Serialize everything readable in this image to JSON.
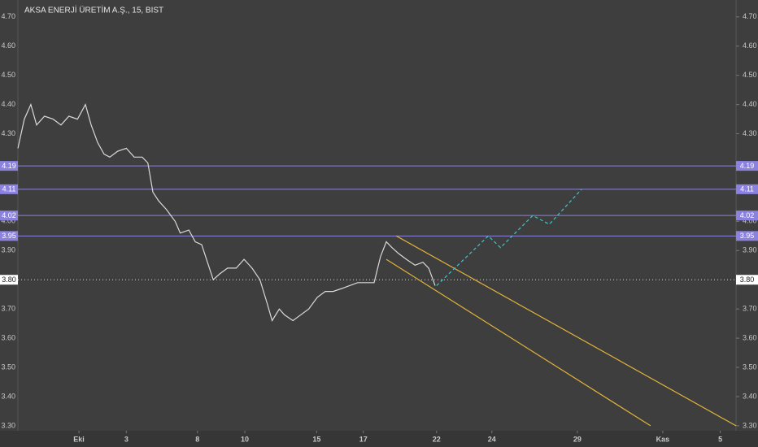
{
  "chart_data": {
    "type": "line",
    "title": "AKSA ENERJİ ÜRETİM A.Ş., 15, BIST",
    "xlim": [
      0,
      100
    ],
    "xticks": [
      {
        "value": 8.5,
        "label": "Eki"
      },
      {
        "value": 15.1,
        "label": "3"
      },
      {
        "value": 25.0,
        "label": "8"
      },
      {
        "value": 31.6,
        "label": "10"
      },
      {
        "value": 41.6,
        "label": "15"
      },
      {
        "value": 48.1,
        "label": "17"
      },
      {
        "value": 58.3,
        "label": "22"
      },
      {
        "value": 66.0,
        "label": "24"
      },
      {
        "value": 77.9,
        "label": "29"
      },
      {
        "value": 89.8,
        "label": "Kas"
      },
      {
        "value": 97.8,
        "label": "5"
      }
    ],
    "ylim": [
      3.283,
      4.758
    ],
    "yticks": [
      {
        "value": 3.3,
        "label": "3.30"
      },
      {
        "value": 3.4,
        "label": "3.40"
      },
      {
        "value": 3.5,
        "label": "3.50"
      },
      {
        "value": 3.6,
        "label": "3.60"
      },
      {
        "value": 3.7,
        "label": "3.70"
      },
      {
        "value": 3.9,
        "label": "3.90"
      },
      {
        "value": 4.0,
        "label": "4.00"
      },
      {
        "value": 4.3,
        "label": "4.30"
      },
      {
        "value": 4.4,
        "label": "4.40"
      },
      {
        "value": 4.5,
        "label": "4.50"
      },
      {
        "value": 4.6,
        "label": "4.60"
      },
      {
        "value": 4.7,
        "label": "4.70"
      }
    ],
    "series": [
      {
        "color": "#d9d9d9",
        "x": [
          0,
          0.9,
          1.8,
          2.6,
          3.7,
          4.9,
          6.0,
          7.1,
          8.3,
          9.4,
          10.2,
          11.1,
          12.0,
          12.8,
          13.9,
          15.1,
          16.2,
          17.3,
          18.1,
          18.8,
          19.6,
          20.7,
          21.9,
          22.6,
          23.8,
          24.7,
          25.6,
          26.4,
          27.2,
          28.1,
          29.2,
          30.4,
          31.5,
          32.6,
          33.7,
          34.7,
          35.4,
          36.4,
          37.1,
          38.3,
          39.4,
          40.5,
          41.7,
          42.8,
          43.9,
          45.1,
          46.2,
          47.3,
          48.5,
          49.6,
          50.5,
          51.3,
          52.1,
          53.0,
          54.1,
          55.3,
          56.4,
          57.2,
          58.1
        ],
        "values": [
          4.25,
          4.35,
          4.4,
          4.33,
          4.36,
          4.35,
          4.33,
          4.36,
          4.35,
          4.4,
          4.33,
          4.27,
          4.23,
          4.22,
          4.24,
          4.25,
          4.22,
          4.22,
          4.2,
          4.1,
          4.07,
          4.04,
          4.0,
          3.96,
          3.97,
          3.93,
          3.92,
          3.86,
          3.8,
          3.82,
          3.84,
          3.84,
          3.87,
          3.84,
          3.8,
          3.72,
          3.66,
          3.7,
          3.68,
          3.66,
          3.68,
          3.7,
          3.74,
          3.76,
          3.76,
          3.77,
          3.78,
          3.79,
          3.79,
          3.79,
          3.88,
          3.93,
          3.91,
          3.89,
          3.87,
          3.85,
          3.86,
          3.84,
          3.78
        ]
      }
    ],
    "levels": [
      {
        "value": 4.19,
        "label": "4.19",
        "color": "#8b82e0",
        "dotted": false
      },
      {
        "value": 4.11,
        "label": "4.11",
        "color": "#8b82e0",
        "dotted": false
      },
      {
        "value": 4.02,
        "label": "4.02",
        "color": "#8b82e0",
        "dotted": false
      },
      {
        "value": 3.95,
        "label": "3.95",
        "color": "#8b82e0",
        "dotted": false
      },
      {
        "value": 3.8,
        "label": "3.80",
        "color": "#ffffff",
        "dotted": true
      }
    ],
    "drawings": [
      {
        "color": "#e0b43a",
        "dashed": false,
        "x": [
          52.7,
          100
        ],
        "values": [
          3.95,
          3.3
        ]
      },
      {
        "color": "#e0b43a",
        "dashed": false,
        "x": [
          51.3,
          88.1
        ],
        "values": [
          3.87,
          3.3
        ]
      },
      {
        "color": "#3ec6c6",
        "dashed": true,
        "x": [
          58.3,
          65.5,
          67.2,
          71.7,
          74.0,
          78.5
        ],
        "values": [
          3.78,
          3.95,
          3.91,
          4.02,
          3.99,
          4.11
        ]
      }
    ]
  }
}
